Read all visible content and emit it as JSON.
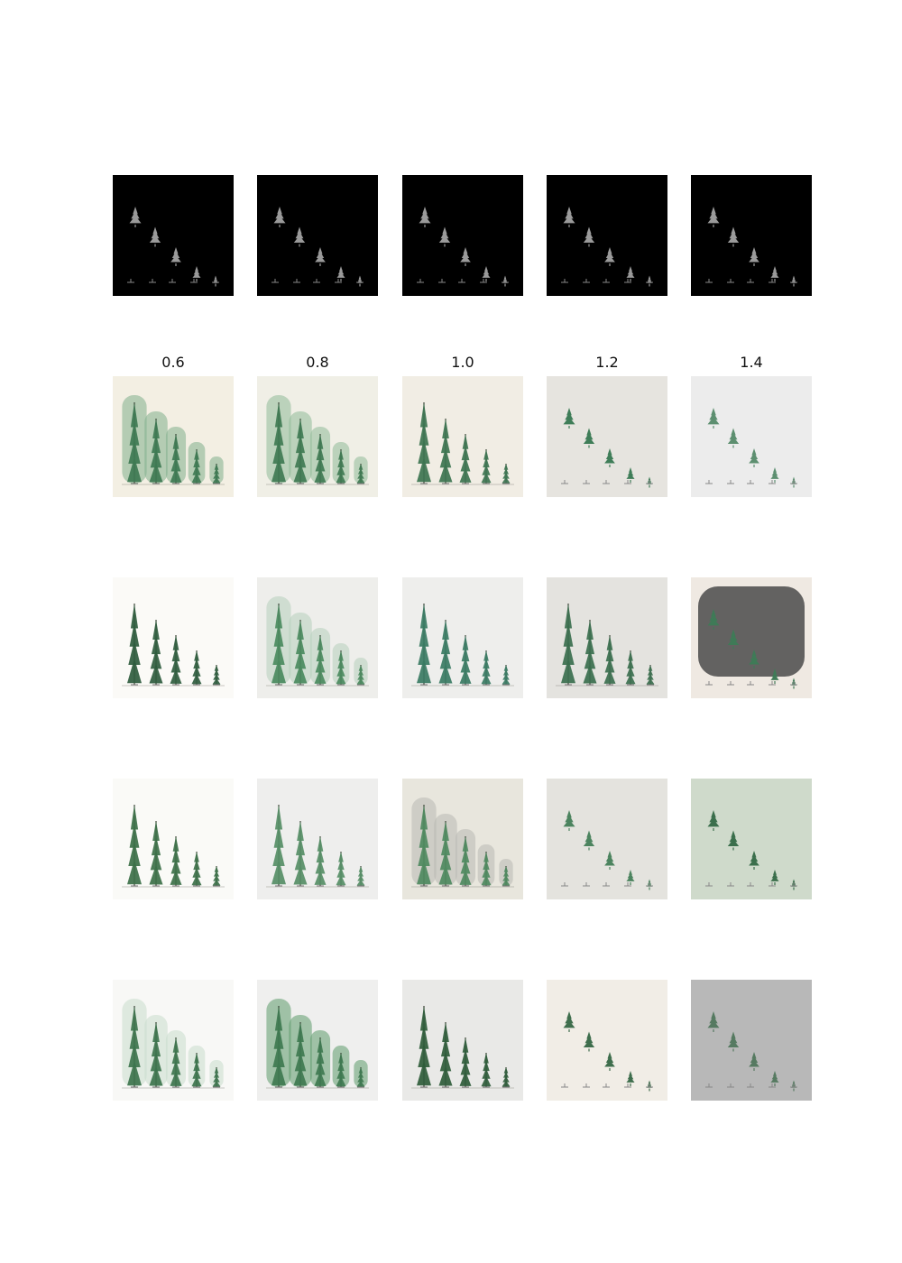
{
  "column_labels": [
    "0.6",
    "0.8",
    "1.0",
    "1.2",
    "1.4"
  ],
  "rows": [
    {
      "kind": "mask",
      "cells": [
        {
          "bg": "#000000",
          "tree": "#9a9a9a",
          "layout": "diagonal"
        },
        {
          "bg": "#000000",
          "tree": "#9a9a9a",
          "layout": "diagonal"
        },
        {
          "bg": "#000000",
          "tree": "#9a9a9a",
          "layout": "diagonal"
        },
        {
          "bg": "#000000",
          "tree": "#9a9a9a",
          "layout": "diagonal"
        },
        {
          "bg": "#000000",
          "tree": "#9a9a9a",
          "layout": "diagonal"
        }
      ]
    },
    {
      "kind": "sample",
      "cells": [
        {
          "bg": "#f3efe3",
          "tree": "#3e7a52",
          "layout": "descending",
          "wash": "#7fae8c"
        },
        {
          "bg": "#f0efe6",
          "tree": "#3f7a52",
          "layout": "descending",
          "wash": "#8fba98"
        },
        {
          "bg": "#f1ede4",
          "tree": "#3d7450",
          "layout": "descending"
        },
        {
          "bg": "#e6e4df",
          "tree": "#3f7d58",
          "layout": "diagonal"
        },
        {
          "bg": "#ececec",
          "tree": "#5d8f70",
          "layout": "diagonal"
        }
      ]
    },
    {
      "kind": "sample",
      "cells": [
        {
          "bg": "#fbfaf7",
          "tree": "#2f5c3e",
          "layout": "descending"
        },
        {
          "bg": "#eeeeeb",
          "tree": "#4b8a5e",
          "layout": "descending",
          "wash": "#b7cfbc"
        },
        {
          "bg": "#eeeeec",
          "tree": "#3a7b63",
          "layout": "descending"
        },
        {
          "bg": "#e4e3df",
          "tree": "#3b6f4e",
          "layout": "descending"
        },
        {
          "bg": "#efe9e2",
          "tree": "#3f7a57",
          "layout": "diagonal",
          "shadow": "#4a4a4a"
        }
      ]
    },
    {
      "kind": "sample",
      "cells": [
        {
          "bg": "#fafaf7",
          "tree": "#3c7048",
          "layout": "descending"
        },
        {
          "bg": "#eeeeed",
          "tree": "#568e66",
          "layout": "descending"
        },
        {
          "bg": "#e8e6dd",
          "tree": "#4f8a60",
          "layout": "descending",
          "wash": "#b8b8b2"
        },
        {
          "bg": "#e4e3de",
          "tree": "#4c845f",
          "layout": "diagonal"
        },
        {
          "bg": "#cfdacb",
          "tree": "#3b6f4c",
          "layout": "diagonal"
        }
      ]
    },
    {
      "kind": "sample",
      "cells": [
        {
          "bg": "#f8f8f6",
          "tree": "#3d744d",
          "layout": "descending",
          "wash": "#c9dccc"
        },
        {
          "bg": "#efefee",
          "tree": "#3e7a50",
          "layout": "descending",
          "wash": "#5d9a6b"
        },
        {
          "bg": "#e9e9e7",
          "tree": "#2f5c3b",
          "layout": "descending"
        },
        {
          "bg": "#f1ede6",
          "tree": "#3f6e4d",
          "layout": "diagonal"
        },
        {
          "bg": "#b8b8b8",
          "tree": "#567a61",
          "layout": "diagonal"
        }
      ]
    }
  ]
}
